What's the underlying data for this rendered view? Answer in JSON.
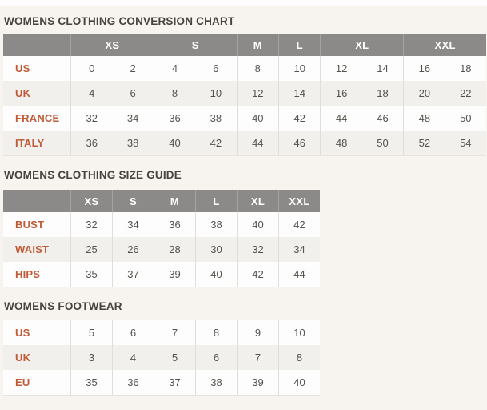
{
  "colors": {
    "page_bg": "#f7f4ef",
    "top_strip": "#fdfdfd",
    "header_bg": "#8c8a88",
    "header_text": "#ffffff",
    "row_bg": "#fdfdfd",
    "row_alt_bg": "#f2f0ed",
    "label_text": "#c05b38",
    "value_text": "#55524d",
    "title_text": "#454240"
  },
  "sections": [
    {
      "id": "womens-clothing-conversion-chart",
      "title": "WOMENS CLOTHING CONVERSION CHART",
      "header_groups": [
        {
          "label": "XS",
          "span": 2
        },
        {
          "label": "S",
          "span": 2
        },
        {
          "label": "M",
          "span": 1
        },
        {
          "label": "L",
          "span": 1
        },
        {
          "label": "XL",
          "span": 2
        },
        {
          "label": "XXL",
          "span": 2
        }
      ],
      "rows": [
        {
          "label": "US",
          "values": [
            [
              "0",
              "2"
            ],
            [
              "4",
              "6"
            ],
            [
              "8"
            ],
            [
              "10"
            ],
            [
              "12",
              "14"
            ],
            [
              "16",
              "18"
            ]
          ]
        },
        {
          "label": "UK",
          "values": [
            [
              "4",
              "6"
            ],
            [
              "8",
              "10"
            ],
            [
              "12"
            ],
            [
              "14"
            ],
            [
              "16",
              "18"
            ],
            [
              "20",
              "22"
            ]
          ]
        },
        {
          "label": "FRANCE",
          "values": [
            [
              "32",
              "34"
            ],
            [
              "36",
              "38"
            ],
            [
              "40"
            ],
            [
              "42"
            ],
            [
              "44",
              "46"
            ],
            [
              "48",
              "50"
            ]
          ]
        },
        {
          "label": "ITALY",
          "values": [
            [
              "36",
              "38"
            ],
            [
              "40",
              "42"
            ],
            [
              "44"
            ],
            [
              "46"
            ],
            [
              "48",
              "50"
            ],
            [
              "52",
              "54"
            ]
          ]
        }
      ]
    },
    {
      "id": "womens-clothing-size-guide",
      "title": "WOMENS CLOTHING SIZE GUIDE",
      "header_groups": [
        {
          "label": "XS",
          "span": 1
        },
        {
          "label": "S",
          "span": 1
        },
        {
          "label": "M",
          "span": 1
        },
        {
          "label": "L",
          "span": 1
        },
        {
          "label": "XL",
          "span": 1
        },
        {
          "label": "XXL",
          "span": 1
        }
      ],
      "rows": [
        {
          "label": "BUST",
          "values": [
            [
              "32"
            ],
            [
              "34"
            ],
            [
              "36"
            ],
            [
              "38"
            ],
            [
              "40"
            ],
            [
              "42"
            ]
          ]
        },
        {
          "label": "WAIST",
          "values": [
            [
              "25"
            ],
            [
              "26"
            ],
            [
              "28"
            ],
            [
              "30"
            ],
            [
              "32"
            ],
            [
              "34"
            ]
          ]
        },
        {
          "label": "HIPS",
          "values": [
            [
              "35"
            ],
            [
              "37"
            ],
            [
              "39"
            ],
            [
              "40"
            ],
            [
              "42"
            ],
            [
              "44"
            ]
          ]
        }
      ]
    },
    {
      "id": "womens-footwear",
      "title": "WOMENS FOOTWEAR",
      "header_groups": [],
      "rows": [
        {
          "label": "US",
          "values": [
            [
              "5"
            ],
            [
              "6"
            ],
            [
              "7"
            ],
            [
              "8"
            ],
            [
              "9"
            ],
            [
              "10"
            ]
          ]
        },
        {
          "label": "UK",
          "values": [
            [
              "3"
            ],
            [
              "4"
            ],
            [
              "5"
            ],
            [
              "6"
            ],
            [
              "7"
            ],
            [
              "8"
            ]
          ]
        },
        {
          "label": "EU",
          "values": [
            [
              "35"
            ],
            [
              "36"
            ],
            [
              "37"
            ],
            [
              "38"
            ],
            [
              "39"
            ],
            [
              "40"
            ]
          ]
        }
      ]
    }
  ]
}
